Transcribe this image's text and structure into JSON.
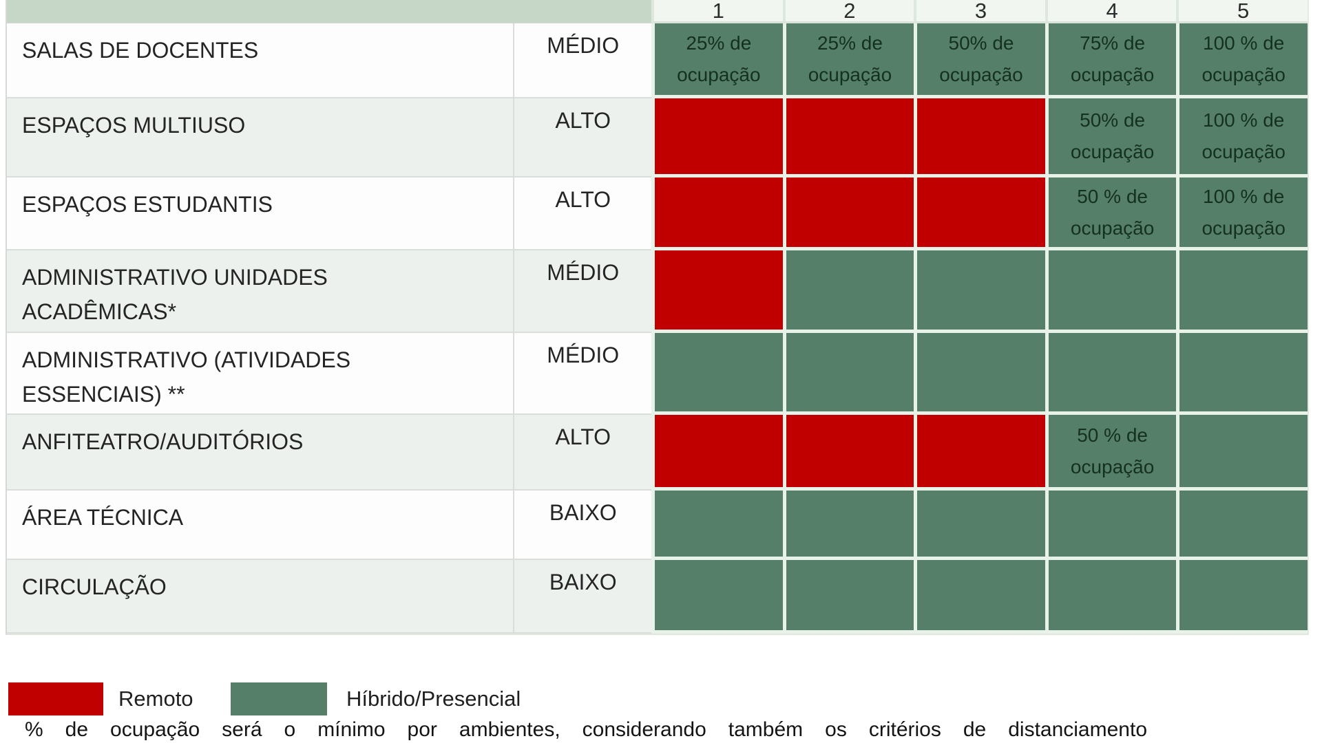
{
  "header": {
    "phase_labels": [
      "1",
      "2",
      "3",
      "4",
      "5"
    ]
  },
  "rows": [
    {
      "label": "SALAS DE DOCENTES",
      "risk": "MÉDIO",
      "cells": [
        {
          "state": "green",
          "text": [
            "25% de",
            "ocupação"
          ]
        },
        {
          "state": "green",
          "text": [
            "25% de",
            "ocupação"
          ]
        },
        {
          "state": "green",
          "text": [
            "50% de",
            "ocupação"
          ]
        },
        {
          "state": "green",
          "text": [
            "75% de",
            "ocupação"
          ]
        },
        {
          "state": "green",
          "text": [
            "100 % de",
            "ocupação"
          ]
        }
      ]
    },
    {
      "label": "ESPAÇOS MULTIUSO",
      "risk": "ALTO",
      "cells": [
        {
          "state": "red",
          "text": []
        },
        {
          "state": "red",
          "text": []
        },
        {
          "state": "red",
          "text": []
        },
        {
          "state": "green",
          "text": [
            "50% de",
            "ocupação"
          ]
        },
        {
          "state": "green",
          "text": [
            "100 % de",
            "ocupação"
          ]
        }
      ]
    },
    {
      "label": "ESPAÇOS ESTUDANTIS",
      "risk": "ALTO",
      "cells": [
        {
          "state": "red",
          "text": []
        },
        {
          "state": "red",
          "text": []
        },
        {
          "state": "red",
          "text": []
        },
        {
          "state": "green",
          "text": [
            "50 % de",
            "ocupação"
          ]
        },
        {
          "state": "green",
          "text": [
            "100 % de",
            "ocupação"
          ]
        }
      ]
    },
    {
      "label": "ADMINISTRATIVO UNIDADES ACADÊMICAS*",
      "risk": "MÉDIO",
      "cells": [
        {
          "state": "red",
          "text": []
        },
        {
          "state": "green",
          "text": []
        },
        {
          "state": "green",
          "text": []
        },
        {
          "state": "green",
          "text": []
        },
        {
          "state": "green",
          "text": []
        }
      ]
    },
    {
      "label": "ADMINISTRATIVO (ATIVIDADES ESSENCIAIS) **",
      "risk": "MÉDIO",
      "cells": [
        {
          "state": "green",
          "text": []
        },
        {
          "state": "green",
          "text": []
        },
        {
          "state": "green",
          "text": []
        },
        {
          "state": "green",
          "text": []
        },
        {
          "state": "green",
          "text": []
        }
      ]
    },
    {
      "label": "ANFITEATRO/AUDITÓRIOS",
      "risk": "ALTO",
      "cells": [
        {
          "state": "red",
          "text": []
        },
        {
          "state": "red",
          "text": []
        },
        {
          "state": "red",
          "text": []
        },
        {
          "state": "green",
          "text": [
            "50 % de",
            "ocupação"
          ]
        },
        {
          "state": "green",
          "text": []
        }
      ]
    },
    {
      "label": "ÁREA TÉCNICA",
      "risk": "BAIXO",
      "cells": [
        {
          "state": "green",
          "text": []
        },
        {
          "state": "green",
          "text": []
        },
        {
          "state": "green",
          "text": []
        },
        {
          "state": "green",
          "text": []
        },
        {
          "state": "green",
          "text": []
        }
      ]
    },
    {
      "label": "CIRCULAÇÃO",
      "risk": "BAIXO",
      "cells": [
        {
          "state": "green",
          "text": []
        },
        {
          "state": "green",
          "text": []
        },
        {
          "state": "green",
          "text": []
        },
        {
          "state": "green",
          "text": []
        },
        {
          "state": "green",
          "text": []
        }
      ]
    }
  ],
  "legend": {
    "remote": {
      "label": "Remoto",
      "color": "#c00000"
    },
    "hybrid": {
      "label": "Híbrido/Presencial",
      "color": "#567f6a"
    }
  },
  "footnote": "% de ocupação será o mínimo por ambientes, considerando também os critérios de distanciamento",
  "colors": {
    "remote_red": "#c00000",
    "hybrid_green": "#567f6a",
    "header_sage": "#c6d6c7",
    "row_band": "#edf1ee"
  }
}
